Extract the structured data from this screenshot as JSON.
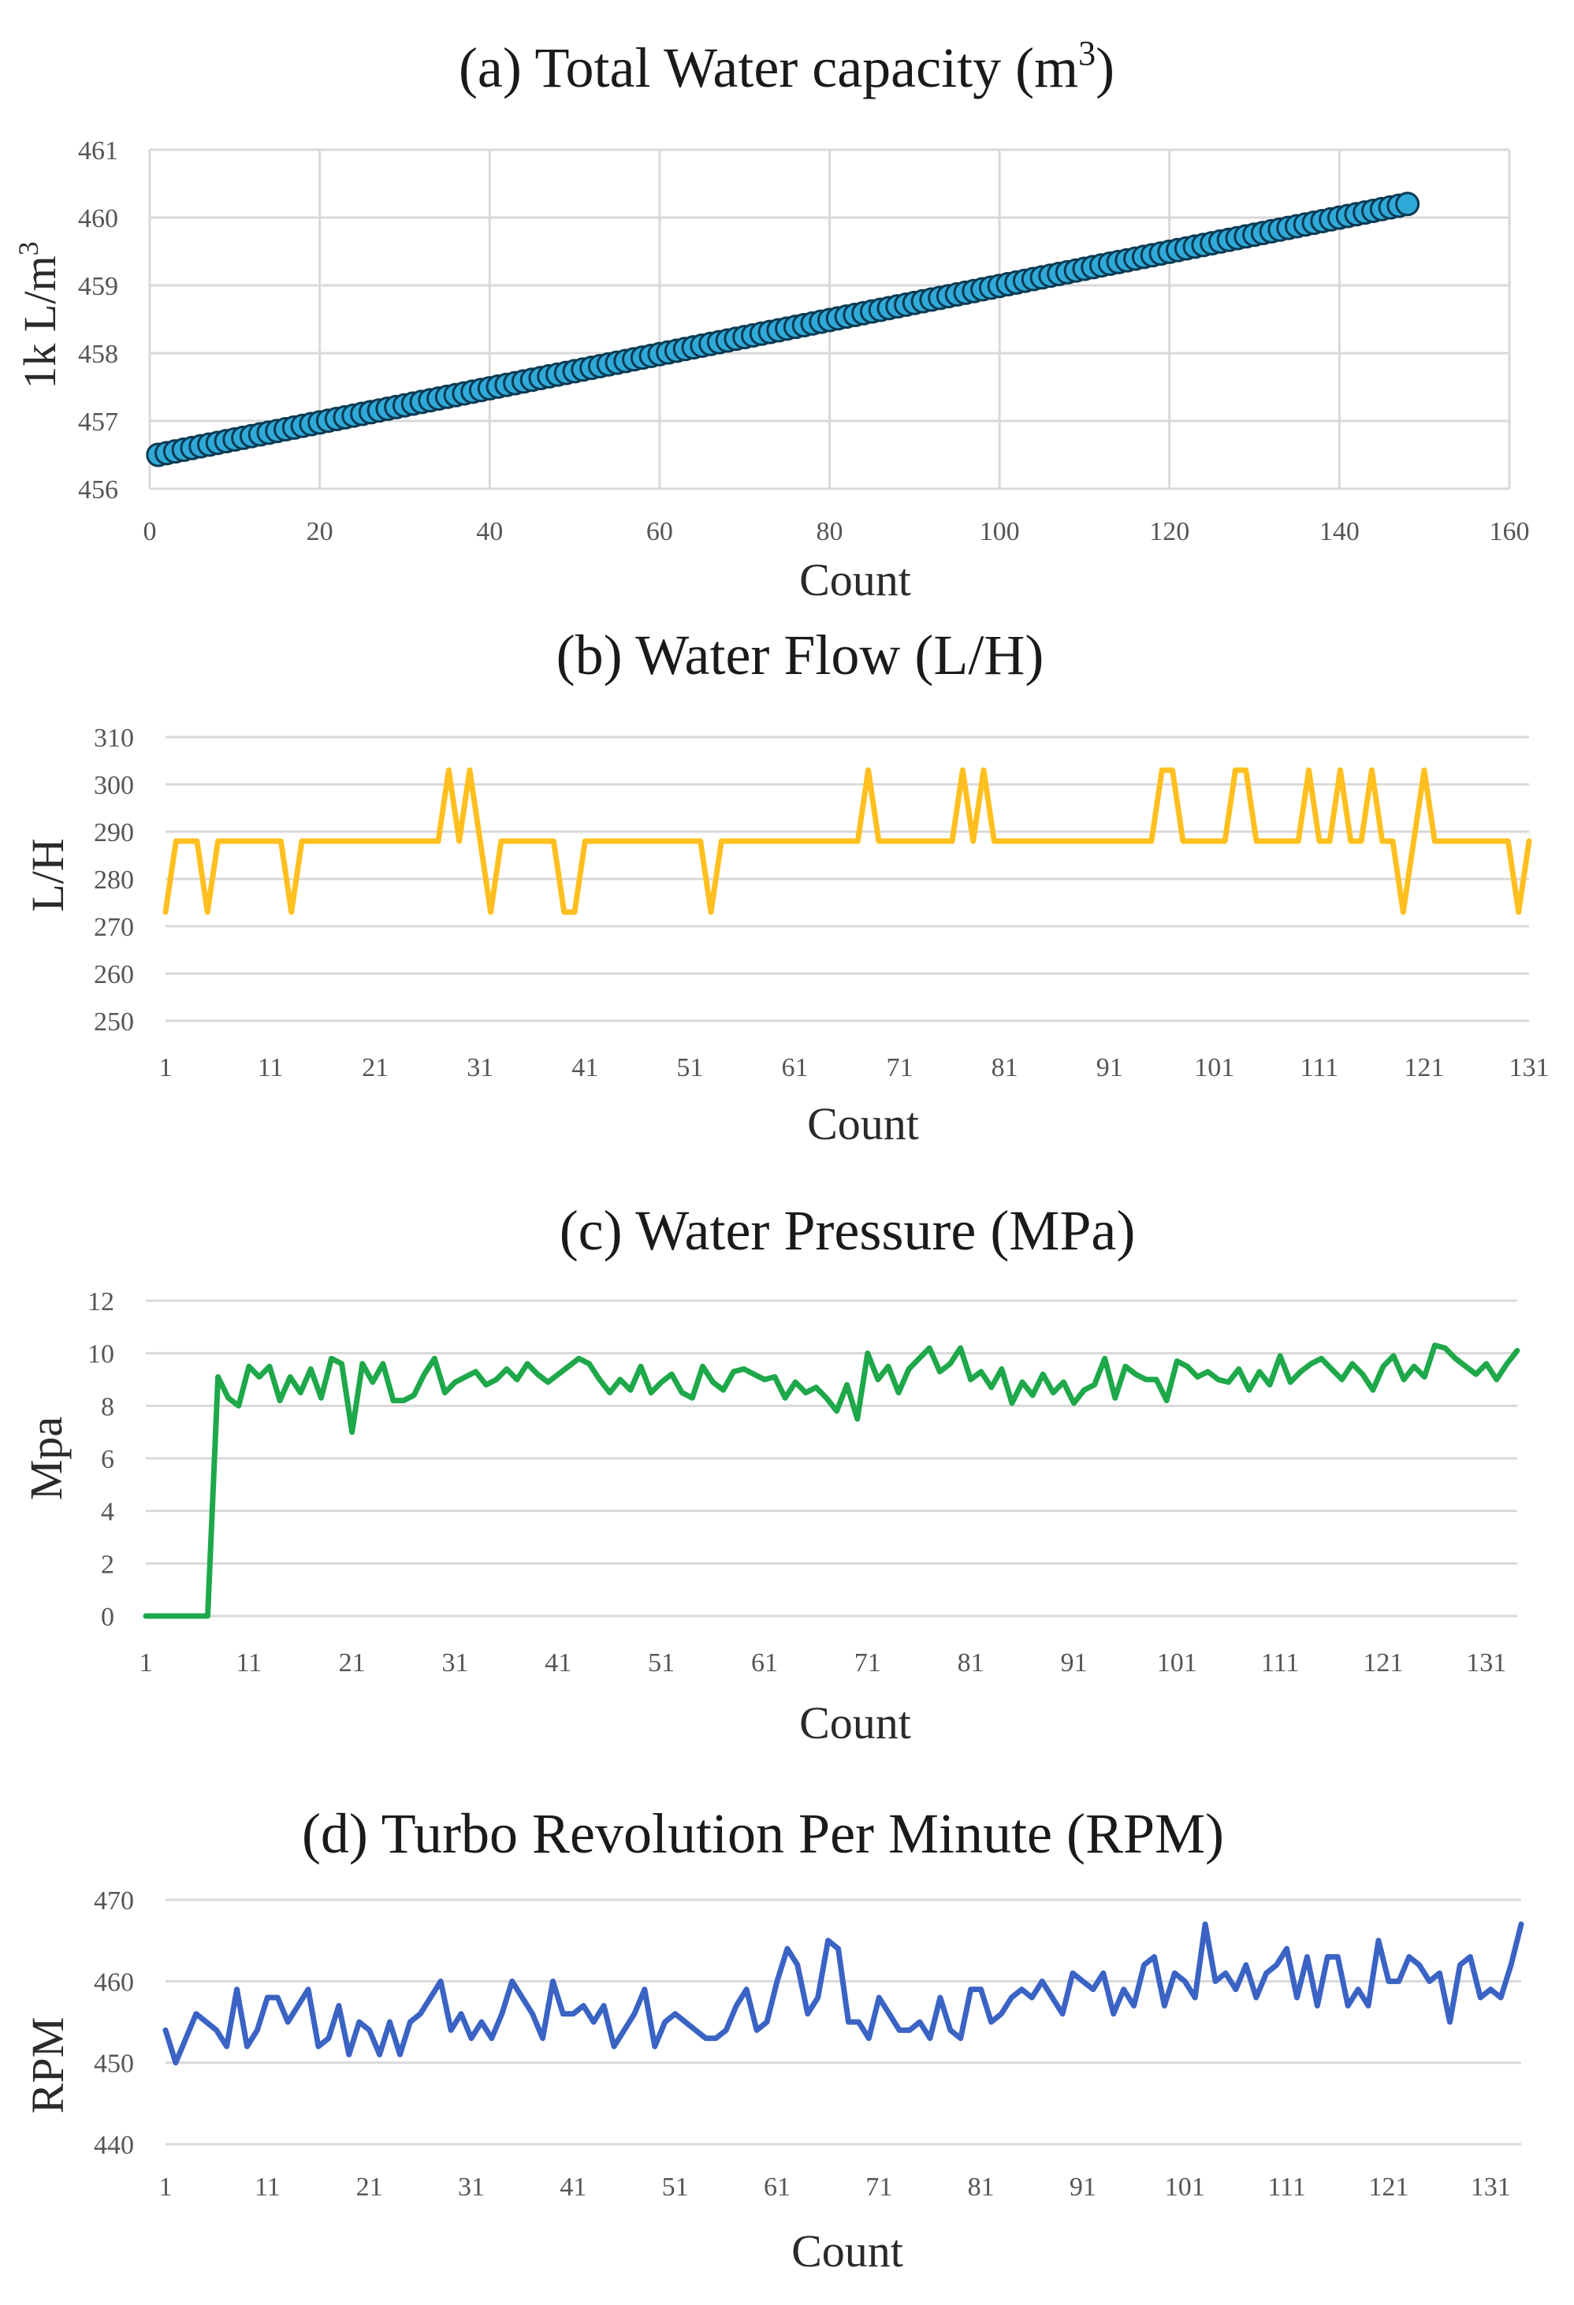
{
  "colors": {
    "panel_a_line": "#1f6f93",
    "panel_a_marker_fill": "#2fa9d8",
    "panel_a_marker_stroke": "#0b3a52",
    "panel_b_line": "#ffbf1f",
    "panel_c_line": "#1ea84a",
    "panel_d_line": "#3a63c4",
    "grid": "#d9d9d9"
  },
  "chart_data": [
    {
      "id": "a",
      "type": "scatter",
      "title": "(a) Total Water capacity (m",
      "title_sup": "3",
      "title_close": ")",
      "xlabel": "Count",
      "ylabel": "1k L/m",
      "ylabel_sup": "3",
      "xlim": [
        0,
        160
      ],
      "ylim": [
        456,
        461
      ],
      "xticks": [
        0,
        20,
        40,
        60,
        80,
        100,
        120,
        140,
        160
      ],
      "yticks": [
        456,
        457,
        458,
        459,
        460,
        461
      ],
      "series": [
        {
          "name": "Total Water capacity",
          "x_start": 1,
          "x_end": 148,
          "y_start": 456.5,
          "y_end": 460.2
        }
      ]
    },
    {
      "id": "b",
      "type": "line",
      "title": "(b) Water Flow (L/H)",
      "xlabel": "Count",
      "ylabel": "L/H",
      "ylim": [
        250,
        310
      ],
      "yticks": [
        250,
        260,
        270,
        280,
        290,
        300,
        310
      ],
      "x_start": 1,
      "xticks": [
        1,
        11,
        21,
        31,
        41,
        51,
        61,
        71,
        81,
        91,
        101,
        111,
        121,
        131
      ],
      "values": [
        273,
        288,
        288,
        288,
        273,
        288,
        288,
        288,
        288,
        288,
        288,
        288,
        273,
        288,
        288,
        288,
        288,
        288,
        288,
        288,
        288,
        288,
        288,
        288,
        288,
        288,
        288,
        303,
        288,
        303,
        288,
        273,
        288,
        288,
        288,
        288,
        288,
        288,
        273,
        273,
        288,
        288,
        288,
        288,
        288,
        288,
        288,
        288,
        288,
        288,
        288,
        288,
        273,
        288,
        288,
        288,
        288,
        288,
        288,
        288,
        288,
        288,
        288,
        288,
        288,
        288,
        288,
        303,
        288,
        288,
        288,
        288,
        288,
        288,
        288,
        288,
        303,
        288,
        303,
        288,
        288,
        288,
        288,
        288,
        288,
        288,
        288,
        288,
        288,
        288,
        288,
        288,
        288,
        288,
        288,
        303,
        303,
        288,
        288,
        288,
        288,
        288,
        303,
        303,
        288,
        288,
        288,
        288,
        288,
        303,
        288,
        288,
        303,
        288,
        288,
        303,
        288,
        288,
        273,
        288,
        303,
        288,
        288,
        288,
        288,
        288,
        288,
        288,
        288,
        273,
        288
      ]
    },
    {
      "id": "c",
      "type": "line",
      "title": "(c) Water Pressure (MPa)",
      "xlabel": "Count",
      "ylabel": "Mpa",
      "ylim": [
        0,
        12
      ],
      "yticks": [
        0,
        2,
        4,
        6,
        8,
        10,
        12
      ],
      "x_start": 1,
      "xticks": [
        1,
        11,
        21,
        31,
        41,
        51,
        61,
        71,
        81,
        91,
        101,
        111,
        121,
        131
      ],
      "values": [
        0,
        0,
        0,
        0,
        0,
        0,
        0,
        9.1,
        8.3,
        8.0,
        9.5,
        9.1,
        9.5,
        8.2,
        9.1,
        8.5,
        9.4,
        8.3,
        9.8,
        9.6,
        7.0,
        9.6,
        8.9,
        9.6,
        8.2,
        8.2,
        8.4,
        9.2,
        9.8,
        8.5,
        8.9,
        9.1,
        9.3,
        8.8,
        9.0,
        9.4,
        9.0,
        9.6,
        9.2,
        8.9,
        9.2,
        9.5,
        9.8,
        9.6,
        9.0,
        8.5,
        9.0,
        8.6,
        9.5,
        8.5,
        8.9,
        9.2,
        8.5,
        8.3,
        9.5,
        8.9,
        8.6,
        9.3,
        9.4,
        9.2,
        9.0,
        9.1,
        8.3,
        8.9,
        8.5,
        8.7,
        8.3,
        7.8,
        8.8,
        7.5,
        10.0,
        9.0,
        9.5,
        8.5,
        9.4,
        9.8,
        10.2,
        9.3,
        9.6,
        10.2,
        9.0,
        9.3,
        8.7,
        9.4,
        8.1,
        8.9,
        8.4,
        9.2,
        8.5,
        8.9,
        8.1,
        8.6,
        8.8,
        9.8,
        8.3,
        9.5,
        9.2,
        9.0,
        9.0,
        8.2,
        9.7,
        9.5,
        9.1,
        9.3,
        9.0,
        8.9,
        9.4,
        8.6,
        9.3,
        8.8,
        9.9,
        8.9,
        9.3,
        9.6,
        9.8,
        9.4,
        9.0,
        9.6,
        9.2,
        8.6,
        9.5,
        9.9,
        9.0,
        9.5,
        9.1,
        10.3,
        10.2,
        9.8,
        9.5,
        9.2,
        9.6,
        9.0,
        9.6,
        10.1
      ]
    },
    {
      "id": "d",
      "type": "line",
      "title": "(d) Turbo Revolution Per Minute (RPM)",
      "xlabel": "Count",
      "ylabel": "RPM",
      "ylim": [
        440,
        470
      ],
      "yticks": [
        440,
        450,
        460,
        470
      ],
      "x_start": 1,
      "xticks": [
        1,
        11,
        21,
        31,
        41,
        51,
        61,
        71,
        81,
        91,
        101,
        111,
        121,
        131
      ],
      "values": [
        454,
        450,
        453,
        456,
        455,
        454,
        452,
        459,
        452,
        454,
        458,
        458,
        455,
        457,
        459,
        452,
        453,
        457,
        451,
        455,
        454,
        451,
        455,
        451,
        455,
        456,
        458,
        460,
        454,
        456,
        453,
        455,
        453,
        456,
        460,
        458,
        456,
        453,
        460,
        456,
        456,
        457,
        455,
        457,
        452,
        454,
        456,
        459,
        452,
        455,
        456,
        455,
        454,
        453,
        453,
        454,
        457,
        459,
        454,
        455,
        460,
        464,
        462,
        456,
        458,
        465,
        464,
        455,
        455,
        453,
        458,
        456,
        454,
        454,
        455,
        453,
        458,
        454,
        453,
        459,
        459,
        455,
        456,
        458,
        459,
        458,
        460,
        458,
        456,
        461,
        460,
        459,
        461,
        456,
        459,
        457,
        462,
        463,
        457,
        461,
        460,
        458,
        467,
        460,
        461,
        459,
        462,
        458,
        461,
        462,
        464,
        458,
        463,
        457,
        463,
        463,
        457,
        459,
        457,
        465,
        460,
        460,
        463,
        462,
        460,
        461,
        455,
        462,
        463,
        458,
        459,
        458,
        462,
        467
      ]
    }
  ]
}
